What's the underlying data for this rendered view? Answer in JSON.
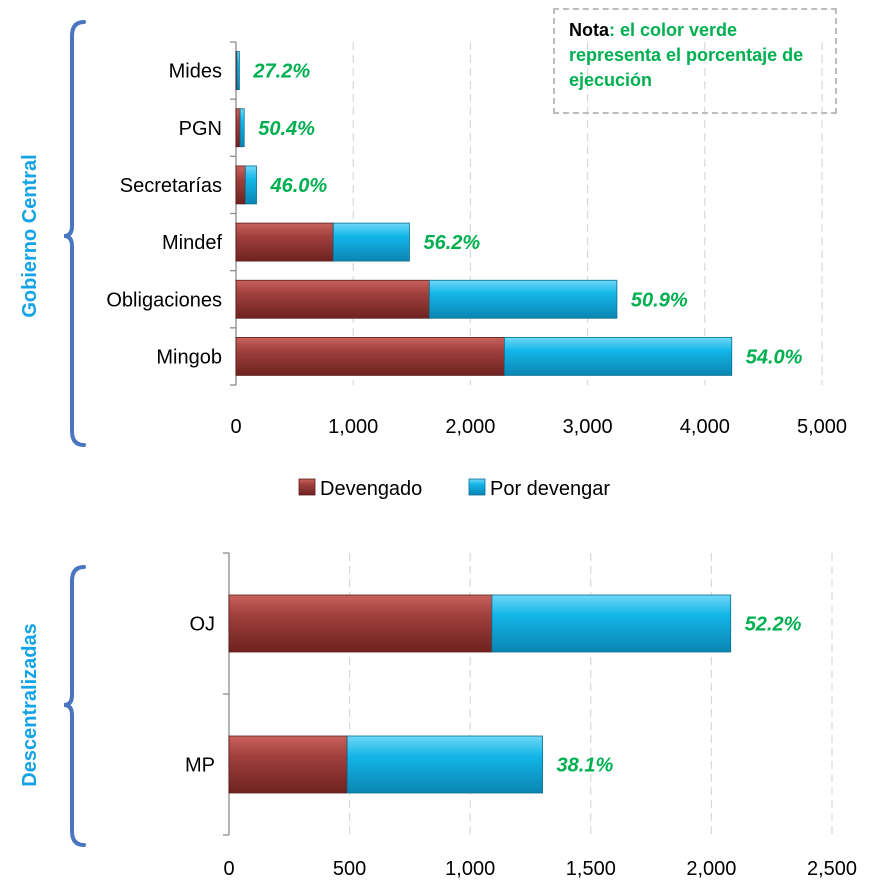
{
  "note": {
    "label": "Nota",
    "text": ": el color verde representa el porcentaje de ejecución"
  },
  "legend": [
    "Devengado",
    "Por devengar"
  ],
  "colors": {
    "devengado": "#a0403d",
    "por_devengar": "#13b6e8",
    "percent": "#00b050",
    "bracket": "#4a76c1",
    "group_label": "#13a3e6"
  },
  "chart_data": [
    {
      "type": "bar",
      "orientation": "horizontal",
      "stacked": true,
      "group_label": "Gobierno Central",
      "categories": [
        "Mides",
        "PGN",
        "Secretarías",
        "Mindef",
        "Obligaciones",
        "Mingob"
      ],
      "series": [
        {
          "name": "Devengado",
          "values": [
            8,
            35,
            80,
            830,
            1650,
            2290
          ]
        },
        {
          "name": "Por devengar",
          "values": [
            21,
            35,
            95,
            650,
            1600,
            1940
          ]
        }
      ],
      "percent_labels": [
        "27.2%",
        "50.4%",
        "46.0%",
        "56.2%",
        "50.9%",
        "54.0%"
      ],
      "xlim": [
        0,
        5000
      ],
      "xticks": [
        "0",
        "1,000",
        "2,000",
        "3,000",
        "4,000",
        "5,000"
      ],
      "grid": "vertical dashed",
      "legend": "bottom"
    },
    {
      "type": "bar",
      "orientation": "horizontal",
      "stacked": true,
      "group_label": "Descentralizadas",
      "categories": [
        "OJ",
        "MP"
      ],
      "series": [
        {
          "name": "Devengado",
          "values": [
            1090,
            490
          ]
        },
        {
          "name": "Por devengar",
          "values": [
            990,
            810
          ]
        }
      ],
      "percent_labels": [
        "52.2%",
        "38.1%"
      ],
      "xlim": [
        0,
        2500
      ],
      "xticks": [
        "0",
        "500",
        "1,000",
        "1,500",
        "2,000",
        "2,500"
      ],
      "grid": "vertical dashed"
    }
  ]
}
